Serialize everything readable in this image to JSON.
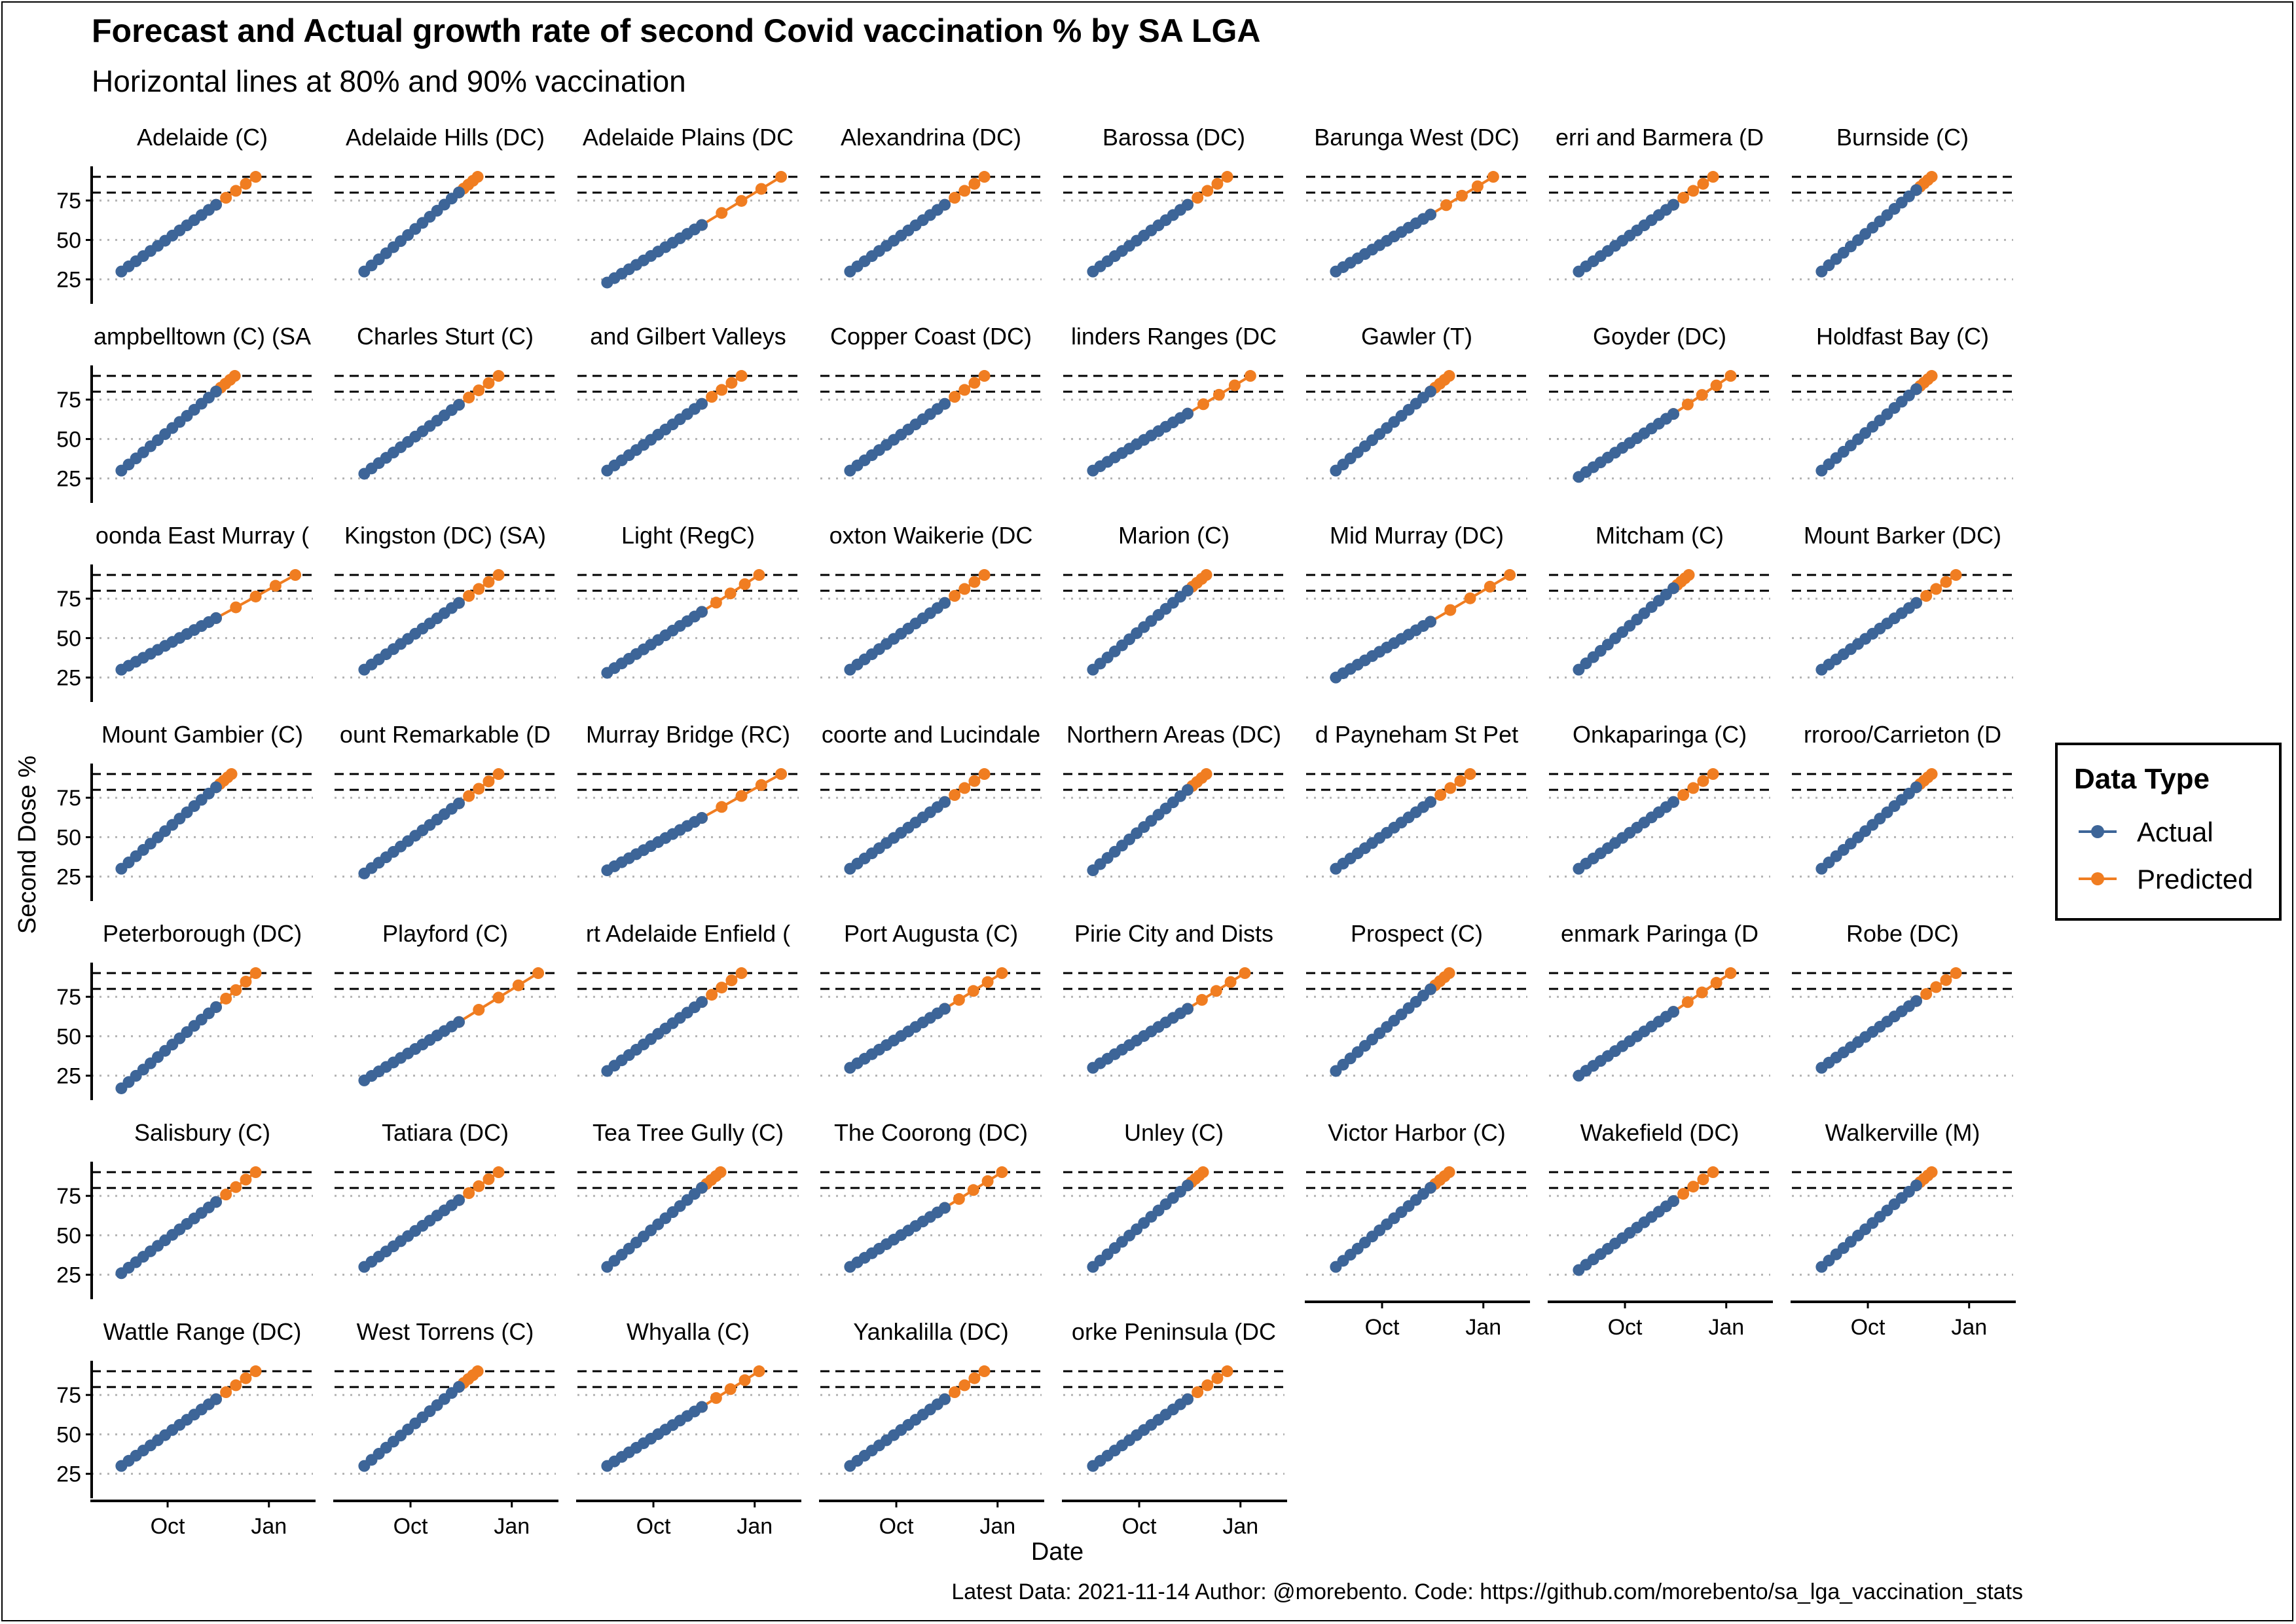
{
  "chart_data": {
    "type": "line",
    "title": "Forecast and Actual growth rate of second Covid vaccination % by SA LGA",
    "subtitle": "Horizontal lines at 80% and 90% vaccination",
    "xlabel": "Date",
    "ylabel": "Second Dose %",
    "x_ticks": [
      {
        "value": "2021-10-01",
        "label": "Oct"
      },
      {
        "value": "2022-01-01",
        "label": "Jan"
      }
    ],
    "x_range": [
      "2021-07-24",
      "2022-02-10"
    ],
    "y_ticks": [
      25,
      50,
      75
    ],
    "ylim": [
      12,
      95
    ],
    "reference_lines": {
      "dashed": [
        80,
        90
      ],
      "dotted": [
        25,
        50,
        75
      ]
    },
    "legend": {
      "title": "Data Type",
      "position": "right",
      "items": [
        {
          "name": "Actual",
          "color": "#3d6598"
        },
        {
          "name": "Predicted",
          "color": "#f07d21"
        }
      ]
    },
    "caption": "Latest Data: 2021-11-14 Author: @morebento. Code: https://github.com/morebento/sa_lga_vaccination_stats",
    "grid": false,
    "panels": [
      {
        "name": "Adelaide (C)",
        "start": 30,
        "pred_end": 90,
        "end_date": "2021-12-20"
      },
      {
        "name": "Adelaide Hills (DC)",
        "start": 30,
        "pred_end": 90,
        "end_date": "2021-12-01"
      },
      {
        "name": "Adelaide Plains (DC",
        "start": 23,
        "pred_end": 90,
        "end_date": "2022-01-25"
      },
      {
        "name": "Alexandrina (DC)",
        "start": 30,
        "pred_end": 90,
        "end_date": "2021-12-20"
      },
      {
        "name": "Barossa (DC)",
        "start": 30,
        "pred_end": 90,
        "end_date": "2021-12-20"
      },
      {
        "name": "Barunga West (DC)",
        "start": 30,
        "pred_end": 90,
        "end_date": "2022-01-10"
      },
      {
        "name": "erri and Barmera (D",
        "start": 30,
        "pred_end": 90,
        "end_date": "2021-12-20"
      },
      {
        "name": "Burnside (C)",
        "start": 30,
        "pred_end": 90,
        "end_date": "2021-11-28"
      },
      {
        "name": "ampbelltown (C) (SA",
        "start": 30,
        "pred_end": 90,
        "end_date": "2021-12-01"
      },
      {
        "name": "Charles Sturt (C)",
        "start": 28,
        "pred_end": 90,
        "end_date": "2021-12-20"
      },
      {
        "name": "and Gilbert Valleys",
        "start": 30,
        "pred_end": 90,
        "end_date": "2021-12-20"
      },
      {
        "name": "Copper Coast (DC)",
        "start": 30,
        "pred_end": 90,
        "end_date": "2021-12-20"
      },
      {
        "name": "linders Ranges (DC",
        "start": 30,
        "pred_end": 90,
        "end_date": "2022-01-10"
      },
      {
        "name": "Gawler (T)",
        "start": 30,
        "pred_end": 90,
        "end_date": "2021-12-01"
      },
      {
        "name": "Goyder (DC)",
        "start": 26,
        "pred_end": 90,
        "end_date": "2022-01-05"
      },
      {
        "name": "Holdfast Bay (C)",
        "start": 30,
        "pred_end": 90,
        "end_date": "2021-11-28"
      },
      {
        "name": "oonda East Murray (",
        "start": 30,
        "pred_end": 90,
        "end_date": "2022-01-25"
      },
      {
        "name": "Kingston (DC) (SA)",
        "start": 30,
        "pred_end": 90,
        "end_date": "2021-12-20"
      },
      {
        "name": "Light (RegC)",
        "start": 28,
        "pred_end": 90,
        "end_date": "2022-01-05"
      },
      {
        "name": "oxton Waikerie (DC",
        "start": 30,
        "pred_end": 90,
        "end_date": "2021-12-20"
      },
      {
        "name": "Marion (C)",
        "start": 30,
        "pred_end": 90,
        "end_date": "2021-12-01"
      },
      {
        "name": "Mid Murray (DC)",
        "start": 25,
        "pred_end": 90,
        "end_date": "2022-01-25"
      },
      {
        "name": "Mitcham (C)",
        "start": 30,
        "pred_end": 90,
        "end_date": "2021-11-28"
      },
      {
        "name": "Mount Barker (DC)",
        "start": 30,
        "pred_end": 90,
        "end_date": "2021-12-20"
      },
      {
        "name": "Mount Gambier (C)",
        "start": 30,
        "pred_end": 90,
        "end_date": "2021-11-28"
      },
      {
        "name": "ount Remarkable (D",
        "start": 27,
        "pred_end": 90,
        "end_date": "2021-12-20"
      },
      {
        "name": "Murray Bridge (RC)",
        "start": 29,
        "pred_end": 90,
        "end_date": "2022-01-25"
      },
      {
        "name": "coorte and Lucindale",
        "start": 30,
        "pred_end": 90,
        "end_date": "2021-12-20"
      },
      {
        "name": "Northern Areas (DC)",
        "start": 29,
        "pred_end": 90,
        "end_date": "2021-12-01"
      },
      {
        "name": "d Payneham St Pet",
        "start": 30,
        "pred_end": 90,
        "end_date": "2021-12-20"
      },
      {
        "name": "Onkaparinga (C)",
        "start": 30,
        "pred_end": 90,
        "end_date": "2021-12-20"
      },
      {
        "name": "rroroo/Carrieton (D",
        "start": 30,
        "pred_end": 90,
        "end_date": "2021-11-28"
      },
      {
        "name": "Peterborough (DC)",
        "start": 17,
        "pred_end": 90,
        "end_date": "2021-12-20"
      },
      {
        "name": "Playford (C)",
        "start": 22,
        "pred_end": 90,
        "end_date": "2022-01-25"
      },
      {
        "name": "rt Adelaide Enfield (",
        "start": 28,
        "pred_end": 90,
        "end_date": "2021-12-20"
      },
      {
        "name": "Port Augusta (C)",
        "start": 30,
        "pred_end": 90,
        "end_date": "2022-01-05"
      },
      {
        "name": "Pirie City and Dists",
        "start": 30,
        "pred_end": 90,
        "end_date": "2022-01-05"
      },
      {
        "name": "Prospect (C)",
        "start": 28,
        "pred_end": 90,
        "end_date": "2021-12-01"
      },
      {
        "name": "enmark Paringa (D",
        "start": 25,
        "pred_end": 90,
        "end_date": "2022-01-05"
      },
      {
        "name": "Robe (DC)",
        "start": 30,
        "pred_end": 90,
        "end_date": "2021-12-20"
      },
      {
        "name": "Salisbury (C)",
        "start": 26,
        "pred_end": 90,
        "end_date": "2021-12-20"
      },
      {
        "name": "Tatiara (DC)",
        "start": 30,
        "pred_end": 90,
        "end_date": "2021-12-20"
      },
      {
        "name": "Tea Tree Gully (C)",
        "start": 30,
        "pred_end": 90,
        "end_date": "2021-12-01"
      },
      {
        "name": "The Coorong (DC)",
        "start": 30,
        "pred_end": 90,
        "end_date": "2022-01-05"
      },
      {
        "name": "Unley (C)",
        "start": 30,
        "pred_end": 90,
        "end_date": "2021-11-28"
      },
      {
        "name": "Victor Harbor (C)",
        "start": 30,
        "pred_end": 90,
        "end_date": "2021-12-01"
      },
      {
        "name": "Wakefield (DC)",
        "start": 28,
        "pred_end": 90,
        "end_date": "2021-12-20"
      },
      {
        "name": "Walkerville (M)",
        "start": 30,
        "pred_end": 90,
        "end_date": "2021-11-28"
      },
      {
        "name": "Wattle Range (DC)",
        "start": 30,
        "pred_end": 90,
        "end_date": "2021-12-20"
      },
      {
        "name": "West Torrens (C)",
        "start": 30,
        "pred_end": 90,
        "end_date": "2021-12-01"
      },
      {
        "name": "Whyalla (C)",
        "start": 30,
        "pred_end": 90,
        "end_date": "2022-01-05"
      },
      {
        "name": "Yankalilla (DC)",
        "start": 30,
        "pred_end": 90,
        "end_date": "2021-12-20"
      },
      {
        "name": "orke Peninsula (DC",
        "start": 30,
        "pred_end": 90,
        "end_date": "2021-12-20"
      }
    ]
  }
}
